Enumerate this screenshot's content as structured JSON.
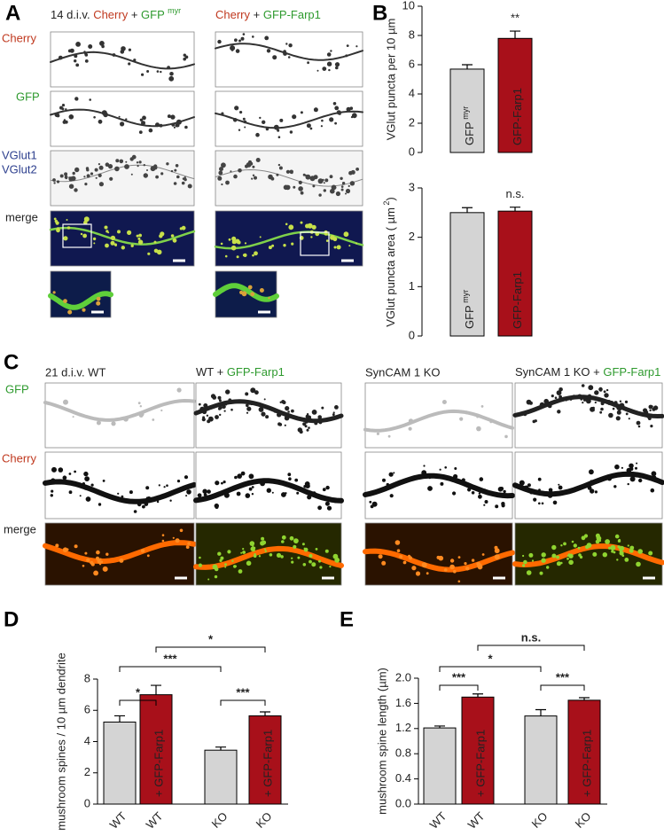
{
  "figure": {
    "panel_a": {
      "letter": "A",
      "header_1": [
        "14 d.i.v.",
        "Cherry",
        "+",
        "GFP",
        "myr"
      ],
      "header_2": [
        "Cherry",
        "+",
        "GFP-Farp1"
      ],
      "row_labels": [
        "Cherry",
        "GFP",
        "VGlut1",
        "VGlut2",
        "merge"
      ]
    },
    "panel_b": {
      "letter": "B"
    },
    "panel_c": {
      "letter": "C",
      "headers": [
        "21 d.i.v. WT",
        "WT +",
        "GFP-Farp1",
        "SynCAM 1 KO",
        "SynCAM 1 KO +",
        "GFP-Farp1"
      ],
      "row_labels": [
        "GFP",
        "Cherry",
        "merge"
      ]
    },
    "panel_d": {
      "letter": "D"
    },
    "panel_e": {
      "letter": "E"
    }
  },
  "chart_data": [
    {
      "type": "bar",
      "ylabel": "VGlut puncta per 10 µm",
      "categories": [
        [
          "GFP",
          "myr"
        ],
        [
          "GFP-Farp1"
        ]
      ],
      "values": [
        5.7,
        7.8
      ],
      "errors": [
        0.3,
        0.5
      ],
      "colors": [
        "#d4d4d4",
        "#a8101a"
      ],
      "bar_annotations": [
        null,
        "**"
      ],
      "ylim": [
        0,
        10
      ],
      "yticks": [
        0,
        2,
        4,
        6,
        8,
        10
      ]
    },
    {
      "type": "bar",
      "ylabel": [
        "VGlut puncta area ( µm",
        "2",
        ")"
      ],
      "categories": [
        [
          "GFP",
          "myr"
        ],
        [
          "GFP-Farp1"
        ]
      ],
      "values": [
        2.5,
        2.53
      ],
      "errors": [
        0.1,
        0.08
      ],
      "colors": [
        "#d4d4d4",
        "#a8101a"
      ],
      "bar_annotations": [
        null,
        "n.s."
      ],
      "ylim": [
        0,
        3
      ],
      "yticks": [
        0,
        1,
        2,
        3
      ]
    },
    {
      "type": "bar",
      "ylabel": "mushroom spines / 10 µm dendrite",
      "categories": [
        "WT",
        "WT",
        "KO",
        "KO"
      ],
      "bar_labels": [
        null,
        "+ GFP-Farp1",
        null,
        "+ GFP-Farp1"
      ],
      "values": [
        5.25,
        7.0,
        3.45,
        5.65
      ],
      "errors": [
        0.4,
        0.6,
        0.2,
        0.25
      ],
      "colors": [
        "#d4d4d4",
        "#a8101a",
        "#d4d4d4",
        "#a8101a"
      ],
      "significance": [
        "*",
        "***",
        "*",
        "***"
      ],
      "ylim": [
        0,
        8
      ],
      "yticks": [
        0,
        2,
        4,
        6,
        8
      ]
    },
    {
      "type": "bar",
      "ylabel": "mushroom spine length (µm)",
      "categories": [
        "WT",
        "WT",
        "KO",
        "KO"
      ],
      "bar_labels": [
        null,
        "+ GFP-Farp1",
        null,
        "+ GFP-Farp1"
      ],
      "values": [
        1.21,
        1.7,
        1.4,
        1.65
      ],
      "errors": [
        0.03,
        0.05,
        0.1,
        0.04
      ],
      "colors": [
        "#d4d4d4",
        "#a8101a",
        "#d4d4d4",
        "#a8101a"
      ],
      "significance": [
        "***",
        "*",
        "n.s.",
        "***"
      ],
      "ylim": [
        0,
        2.0
      ],
      "yticks": [
        {
          "value": 0,
          "label": "0.0"
        },
        0.4,
        0.8,
        1.2,
        1.6,
        {
          "value": 2.0,
          "label": "2.0"
        }
      ]
    }
  ]
}
